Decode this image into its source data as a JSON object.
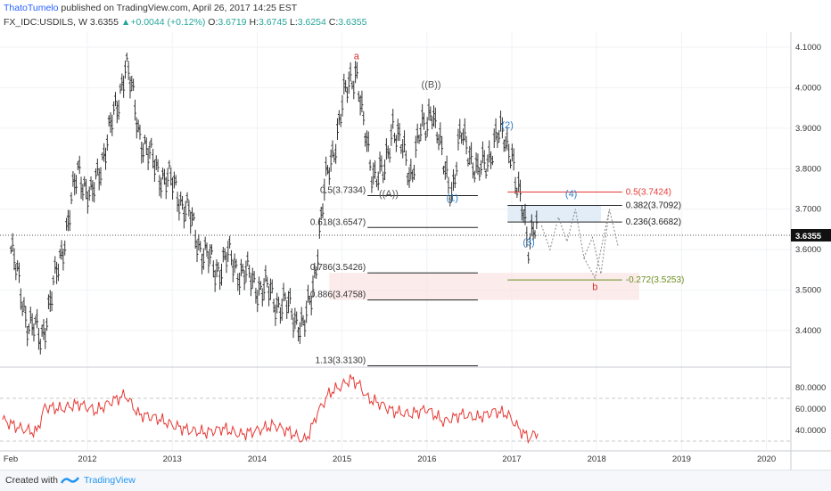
{
  "header": {
    "author": "ThatoTumelo",
    "published": "published on TradingView.com, April 26, 2017 14:25 EST",
    "symbol": "FX_IDC:USDILS, W",
    "price": "3.6355",
    "change": "+0.0044 (+0.12%)",
    "o_label": "O:",
    "o_value": "3.6719",
    "h_label": "H:",
    "h_value": "3.6745",
    "l_label": "L:",
    "l_value": "3.6254",
    "c_label": "C:",
    "c_value": "3.6355"
  },
  "footer": {
    "created_with": "Created with",
    "brand": "TradingView"
  },
  "colors": {
    "candle": "#333333",
    "rsi": "#e53935",
    "wave_blue": "#2e7dc6",
    "wave_red": "#d32f2f",
    "wave_gray": "#555555",
    "fib_red": "#e53935",
    "fib_green": "#6a8e1f"
  },
  "chart_data": [
    {
      "type": "line",
      "subtype": "weekly price bars",
      "title": "",
      "y_ticks": [
        "4.1000",
        "4.0000",
        "3.9000",
        "3.8000",
        "3.7000",
        "3.6000",
        "3.5000",
        "3.4000"
      ],
      "ylim": [
        3.3,
        4.13
      ],
      "x_ticks": [
        "Feb",
        "2012",
        "2013",
        "2014",
        "2015",
        "2016",
        "2017",
        "2018",
        "2019",
        "2020"
      ],
      "last_price_label": "3.6355",
      "series": [
        {
          "x": [
            2011.1,
            2011.3,
            2011.45,
            2011.6,
            2011.75,
            2011.9,
            2012.05,
            2012.2,
            2012.35,
            2012.45,
            2012.6,
            2012.75,
            2012.9,
            2013.05,
            2013.2,
            2013.35,
            2013.5,
            2013.65,
            2013.8,
            2013.95,
            2014.1,
            2014.25,
            2014.4,
            2014.5,
            2014.55,
            2014.65,
            2014.8,
            2014.9,
            2015.0,
            2015.1,
            2015.17,
            2015.25,
            2015.35,
            2015.5,
            2015.6,
            2015.7,
            2015.8,
            2015.9,
            2016.0,
            2016.05,
            2016.2,
            2016.3,
            2016.4,
            2016.5,
            2016.6,
            2016.7,
            2016.8,
            2016.9,
            2017.0,
            2017.05,
            2017.15,
            2017.2,
            2017.25,
            2017.3
          ],
          "values": [
            3.6,
            3.42,
            3.38,
            3.5,
            3.65,
            3.8,
            3.72,
            3.85,
            3.95,
            4.07,
            3.9,
            3.82,
            3.78,
            3.75,
            3.68,
            3.6,
            3.55,
            3.58,
            3.55,
            3.52,
            3.5,
            3.47,
            3.45,
            3.42,
            3.4,
            3.5,
            3.75,
            3.85,
            3.95,
            4.02,
            4.05,
            3.9,
            3.8,
            3.78,
            3.92,
            3.85,
            3.78,
            3.88,
            3.9,
            3.97,
            3.8,
            3.75,
            3.88,
            3.85,
            3.78,
            3.82,
            3.87,
            3.88,
            3.85,
            3.75,
            3.68,
            3.62,
            3.66,
            3.6355
          ]
        }
      ],
      "wave_labels": [
        {
          "text": "a",
          "x": 2015.17,
          "y": 4.07
        },
        {
          "text": "((B))",
          "x": 2016.05,
          "y": 4.0
        },
        {
          "text": "((A))",
          "x": 2015.55,
          "y": 3.73
        },
        {
          "text": "(1)",
          "x": 2016.3,
          "y": 3.72
        },
        {
          "text": "(2)",
          "x": 2016.95,
          "y": 3.9
        },
        {
          "text": "(3)",
          "x": 2017.2,
          "y": 3.61
        },
        {
          "text": "(4)",
          "x": 2017.7,
          "y": 3.73
        },
        {
          "text": "b",
          "x": 2017.98,
          "y": 3.5
        }
      ],
      "fib_levels": [
        {
          "label": "0.5(3.7334)",
          "value": 3.7334
        },
        {
          "label": "0.618(3.6547)",
          "value": 3.6547
        },
        {
          "label": "0.786(3.5426)",
          "value": 3.5426
        },
        {
          "label": "0.886(3.4758)",
          "value": 3.4758
        },
        {
          "label": "1.13(3.3130)",
          "value": 3.313
        },
        {
          "label": "0.5(3.7424)",
          "value": 3.7424
        },
        {
          "label": "0.382(3.7092)",
          "value": 3.7092
        },
        {
          "label": "0.236(3.6682)",
          "value": 3.6682
        },
        {
          "label": "-0.272(3.5253)",
          "value": 3.5253
        }
      ],
      "projection": [
        [
          2017.35,
          3.66
        ],
        [
          2017.45,
          3.6
        ],
        [
          2017.55,
          3.68
        ],
        [
          2017.65,
          3.62
        ],
        [
          2017.75,
          3.7
        ],
        [
          2017.85,
          3.58
        ],
        [
          2017.95,
          3.63
        ],
        [
          2018.05,
          3.54
        ],
        [
          2018.15,
          3.7
        ],
        [
          2018.25,
          3.61
        ]
      ],
      "projection_b": [
        [
          2017.85,
          3.58
        ],
        [
          2017.98,
          3.53
        ],
        [
          2018.15,
          3.7
        ]
      ]
    },
    {
      "type": "line",
      "subtype": "oscillator",
      "title": "",
      "y_ticks": [
        "80.0000",
        "60.0000",
        "40.0000"
      ],
      "ylim": [
        25,
        95
      ],
      "guide_lines": [
        70,
        30
      ],
      "series": [
        {
          "x": [
            2011.0,
            2011.2,
            2011.4,
            2011.5,
            2011.7,
            2011.9,
            2012.1,
            2012.3,
            2012.45,
            2012.6,
            2012.8,
            2013.0,
            2013.2,
            2013.4,
            2013.6,
            2013.8,
            2014.0,
            2014.2,
            2014.4,
            2014.55,
            2014.62,
            2014.7,
            2014.85,
            2015.0,
            2015.1,
            2015.2,
            2015.3,
            2015.45,
            2015.6,
            2015.8,
            2016.0,
            2016.2,
            2016.4,
            2016.6,
            2016.8,
            2016.95,
            2017.1,
            2017.2,
            2017.3
          ],
          "values": [
            50,
            42,
            38,
            62,
            60,
            65,
            58,
            68,
            73,
            55,
            52,
            45,
            40,
            38,
            42,
            36,
            40,
            45,
            38,
            30,
            38,
            55,
            75,
            82,
            88,
            83,
            70,
            65,
            58,
            55,
            60,
            48,
            55,
            52,
            58,
            55,
            40,
            33,
            38
          ]
        }
      ]
    }
  ]
}
